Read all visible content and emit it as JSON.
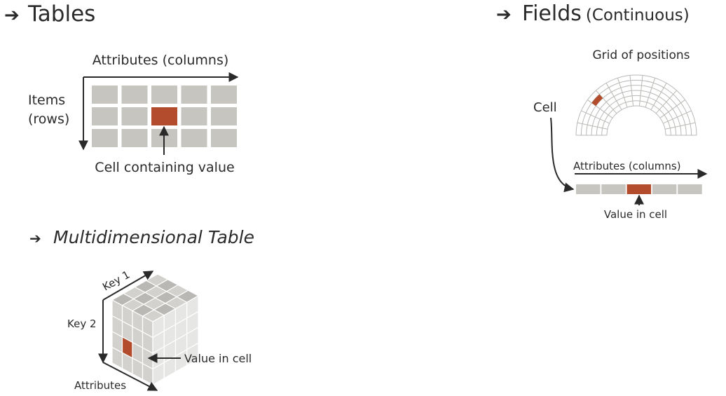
{
  "colors": {
    "cell": "#c6c5c0",
    "highlight": "#b24c2c",
    "ink": "#2a2a2a",
    "cube_face_light": "#e6e6e4",
    "cube_face_mid": "#d2d1ce",
    "cube_face_dark": "#b9b8b5"
  },
  "tables": {
    "heading_arrow": "➔",
    "heading": "Tables",
    "attributes_label": "Attributes (columns)",
    "items_label_1": "Items",
    "items_label_2": "(rows)",
    "cell_label": "Cell containing value"
  },
  "multidim": {
    "heading_arrow": "➔",
    "heading": "Multidimensional Table",
    "key1_label": "Key 1",
    "key2_label": "Key 2",
    "attributes_label": "Attributes",
    "value_label": "Value in cell"
  },
  "fields": {
    "heading_arrow": "➔",
    "heading": "Fields",
    "heading_sub": "(Continuous)",
    "grid_label": "Grid of positions",
    "cell_label": "Cell",
    "attributes_label": "Attributes (columns)",
    "value_label": "Value in cell"
  }
}
